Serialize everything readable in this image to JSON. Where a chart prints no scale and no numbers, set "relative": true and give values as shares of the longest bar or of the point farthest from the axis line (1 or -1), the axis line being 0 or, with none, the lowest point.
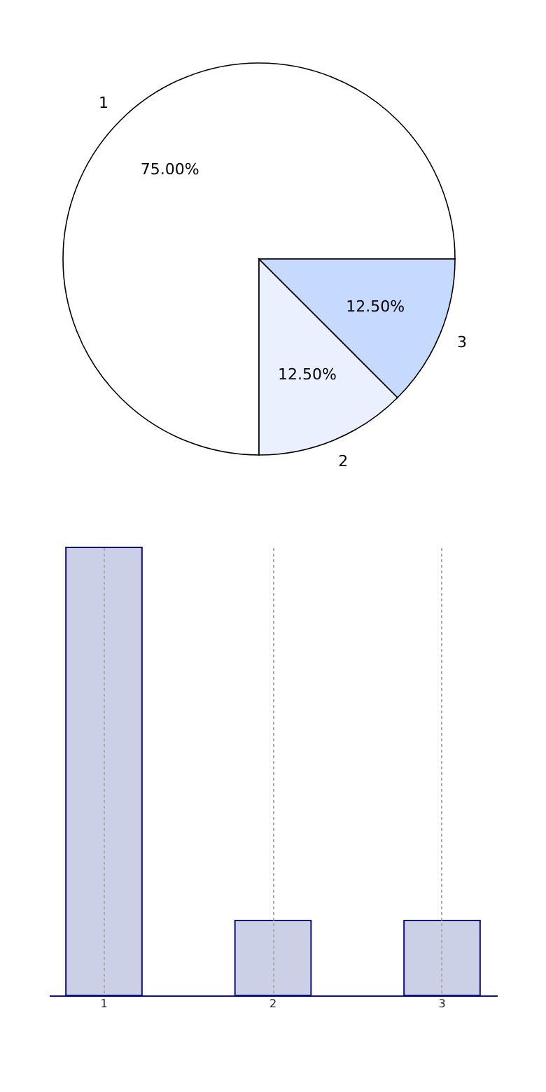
{
  "chart_data": [
    {
      "type": "pie",
      "categories": [
        "1",
        "2",
        "3"
      ],
      "values": [
        75,
        12.5,
        12.5
      ],
      "colors": [
        "#ffffff",
        "#eaf0fe",
        "#c6d9fe"
      ],
      "value_labels": [
        "75.00%",
        "12.50%",
        "12.50%"
      ]
    },
    {
      "type": "bar",
      "categories": [
        "1",
        "2",
        "3"
      ],
      "values": [
        1,
        0.167,
        0.167
      ],
      "color": "#ccd0e6",
      "relative": true,
      "grid": "x"
    }
  ]
}
